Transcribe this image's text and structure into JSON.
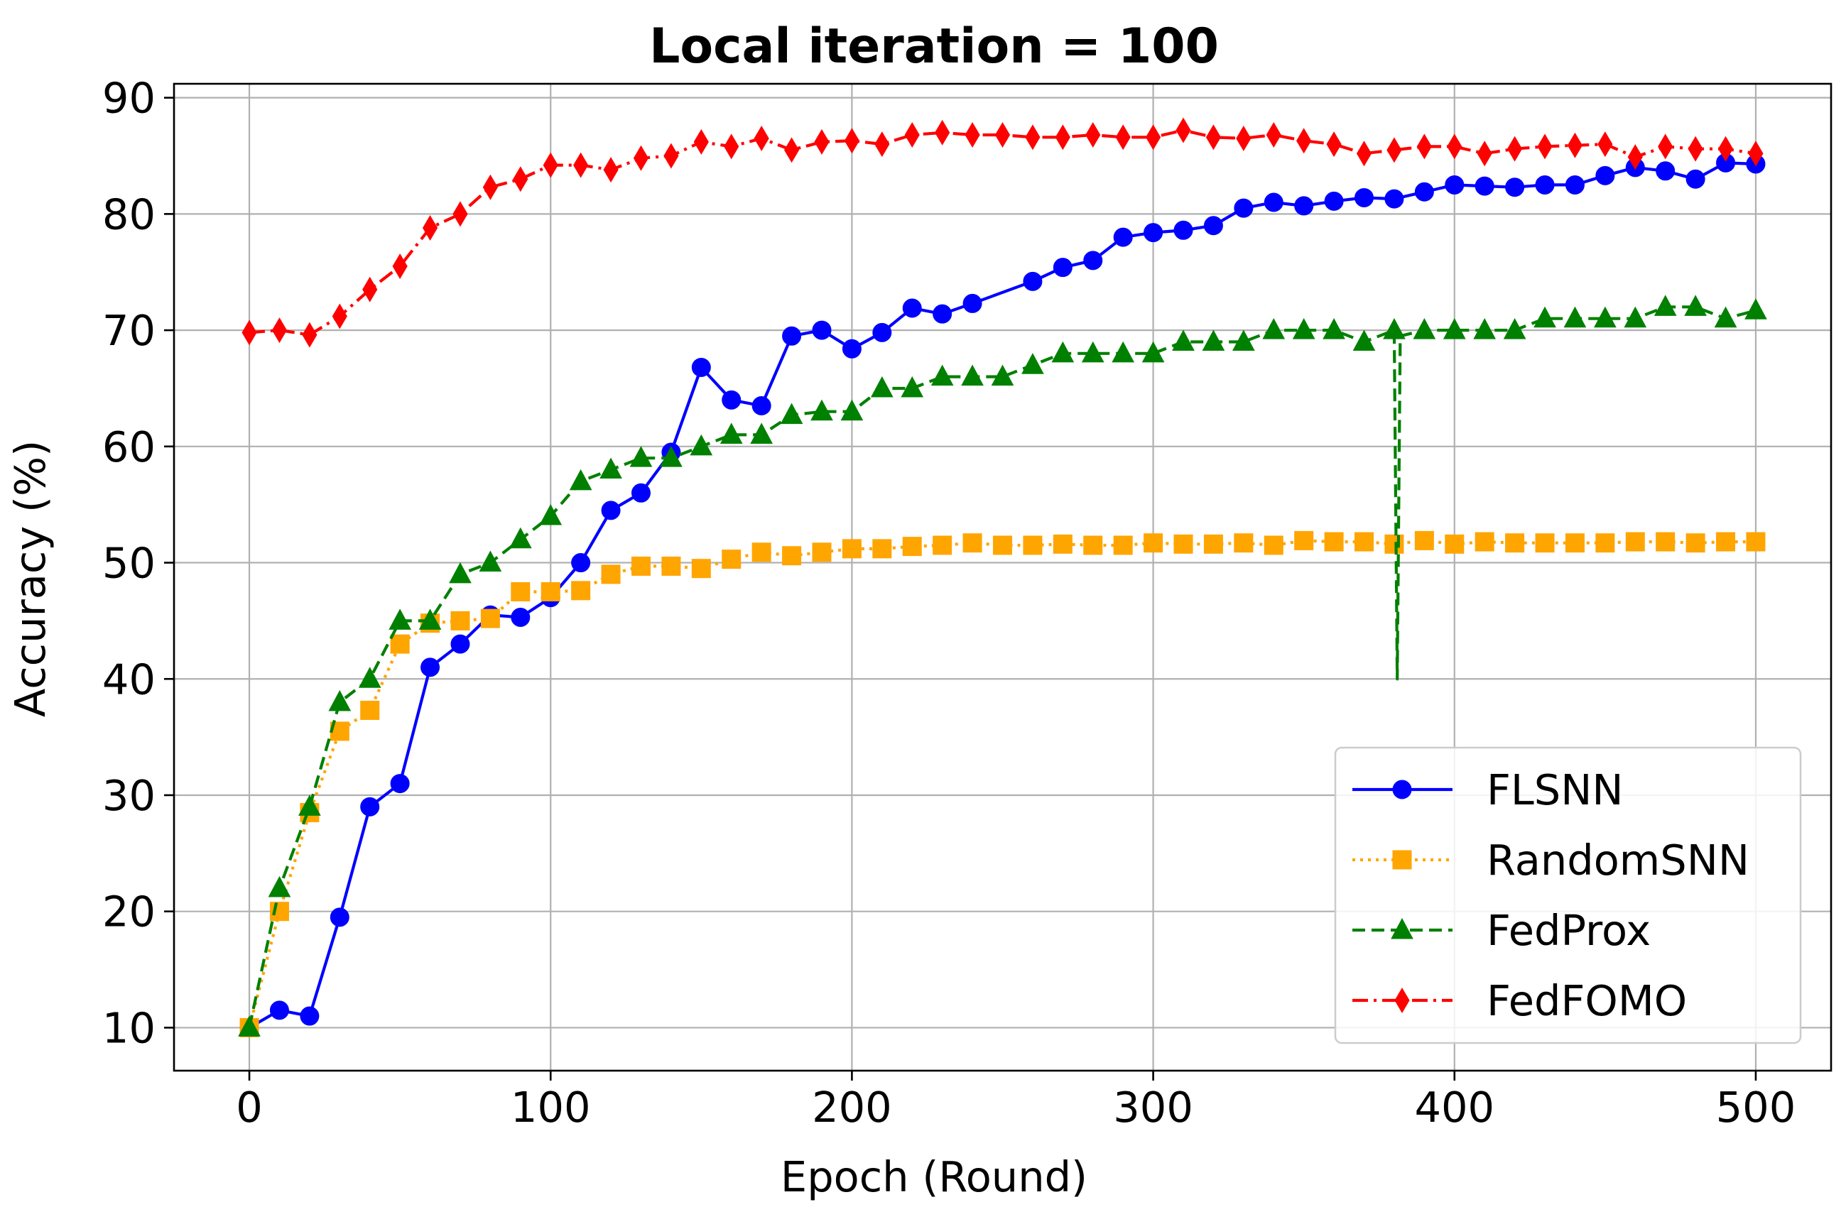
{
  "chart_data": {
    "type": "line",
    "title": "Local iteration = 100",
    "xlabel": "Epoch (Round)",
    "ylabel": "Accuracy (%)",
    "xlim": [
      -25,
      525
    ],
    "ylim": [
      6.3,
      91.2
    ],
    "xticks": [
      0,
      100,
      200,
      300,
      400,
      500
    ],
    "yticks": [
      10,
      20,
      30,
      40,
      50,
      60,
      70,
      80,
      90
    ],
    "grid": true,
    "legend_position": "lower right",
    "series": [
      {
        "name": "FLSNN",
        "color": "#0000ff",
        "linestyle": "solid",
        "marker": "circle",
        "x": [
          0,
          10,
          20,
          30,
          40,
          50,
          60,
          70,
          80,
          90,
          100,
          110,
          120,
          130,
          140,
          150,
          160,
          170,
          180,
          190,
          200,
          210,
          220,
          230,
          240,
          260,
          270,
          280,
          290,
          300,
          310,
          320,
          330,
          340,
          350,
          360,
          370,
          380,
          390,
          400,
          410,
          420,
          430,
          440,
          450,
          460,
          470,
          480,
          490,
          500
        ],
        "y": [
          10,
          11.5,
          11,
          19.5,
          29,
          31,
          41,
          43,
          45.5,
          45.3,
          47,
          50,
          54.5,
          56,
          59.5,
          66.8,
          64,
          63.5,
          69.5,
          70,
          68.4,
          69.8,
          71.9,
          71.4,
          72.3,
          74.2,
          75.4,
          76,
          78,
          78.4,
          78.6,
          79,
          80.5,
          81,
          80.7,
          81.1,
          81.4,
          81.3,
          81.9,
          82.5,
          82.4,
          82.3,
          82.5,
          82.5,
          83.3,
          84,
          83.7,
          83,
          84.4,
          84.3
        ]
      },
      {
        "name": "RandomSNN",
        "color": "#ffa500",
        "linestyle": "dotted",
        "marker": "square",
        "x": [
          0,
          10,
          20,
          30,
          40,
          50,
          60,
          70,
          80,
          90,
          100,
          110,
          120,
          130,
          140,
          150,
          160,
          170,
          180,
          190,
          200,
          210,
          220,
          230,
          240,
          250,
          260,
          270,
          280,
          290,
          300,
          310,
          320,
          330,
          340,
          350,
          360,
          370,
          380,
          390,
          400,
          410,
          420,
          430,
          440,
          450,
          460,
          470,
          480,
          490,
          500
        ],
        "y": [
          10,
          20,
          28.5,
          35.5,
          37.3,
          43,
          44.8,
          45,
          45.2,
          47.5,
          47.5,
          47.6,
          49,
          49.7,
          49.7,
          49.5,
          50.3,
          50.9,
          50.6,
          50.9,
          51.2,
          51.2,
          51.4,
          51.5,
          51.7,
          51.5,
          51.5,
          51.6,
          51.5,
          51.5,
          51.7,
          51.6,
          51.6,
          51.7,
          51.5,
          51.9,
          51.8,
          51.8,
          51.6,
          51.9,
          51.6,
          51.8,
          51.7,
          51.7,
          51.7,
          51.7,
          51.8,
          51.8,
          51.7,
          51.8,
          51.8
        ]
      },
      {
        "name": "FedProx",
        "color": "#008000",
        "linestyle": "dashed",
        "marker": "triangle",
        "x": [
          0,
          10,
          20,
          30,
          40,
          50,
          60,
          70,
          80,
          90,
          100,
          110,
          120,
          130,
          140,
          150,
          160,
          170,
          180,
          190,
          200,
          210,
          220,
          230,
          240,
          250,
          260,
          270,
          280,
          290,
          300,
          310,
          320,
          330,
          340,
          350,
          360,
          370,
          380,
          381,
          382,
          390,
          400,
          410,
          420,
          430,
          440,
          450,
          460,
          470,
          480,
          490,
          500
        ],
        "y": [
          10,
          22,
          29,
          38,
          40,
          45,
          45,
          49,
          50,
          52,
          54,
          57,
          58,
          59,
          59,
          60,
          61,
          61,
          62.7,
          63,
          63,
          65,
          65,
          66,
          66,
          66,
          67,
          68,
          68,
          68,
          68,
          69,
          69,
          69,
          70,
          70,
          70,
          69,
          70,
          40,
          69.5,
          70,
          70,
          70,
          70,
          71,
          71,
          71,
          71,
          72,
          72,
          71,
          71.7
        ]
      },
      {
        "name": "FedFOMO",
        "color": "#ff0000",
        "linestyle": "dashdot",
        "marker": "diamond",
        "x": [
          0,
          10,
          20,
          30,
          40,
          50,
          60,
          70,
          80,
          90,
          100,
          110,
          120,
          130,
          140,
          150,
          160,
          170,
          180,
          190,
          200,
          210,
          220,
          230,
          240,
          250,
          260,
          270,
          280,
          290,
          300,
          310,
          320,
          330,
          340,
          350,
          360,
          370,
          380,
          390,
          400,
          410,
          420,
          430,
          440,
          450,
          460,
          470,
          480,
          490,
          500
        ],
        "y": [
          69.8,
          70,
          69.6,
          71.2,
          73.5,
          75.5,
          78.8,
          80,
          82.3,
          83,
          84.2,
          84.2,
          83.8,
          84.8,
          85,
          86.2,
          85.8,
          86.5,
          85.5,
          86.2,
          86.3,
          86,
          86.8,
          87,
          86.8,
          86.8,
          86.6,
          86.6,
          86.8,
          86.6,
          86.6,
          87.2,
          86.6,
          86.5,
          86.8,
          86.3,
          86,
          85.2,
          85.5,
          85.8,
          85.8,
          85.2,
          85.6,
          85.8,
          85.9,
          86,
          84.9,
          85.8,
          85.6,
          85.6,
          85.2
        ]
      }
    ]
  }
}
